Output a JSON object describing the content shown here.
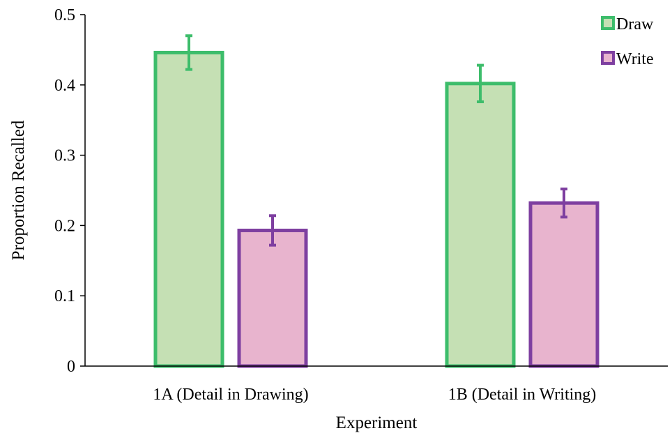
{
  "chart_data": {
    "type": "bar",
    "title": "",
    "xlabel": "Experiment",
    "ylabel": "Proportion Recalled",
    "categories": [
      "1A (Detail in Drawing)",
      "1B (Detail in Writing)"
    ],
    "ylim": [
      0,
      0.5
    ],
    "yticks": [
      0,
      0.1,
      0.2,
      0.3,
      0.4,
      0.5
    ],
    "ytick_labels": [
      "0",
      "0.1",
      "0.2",
      "0.3",
      "0.4",
      "0.5"
    ],
    "grid": false,
    "legend_position": "top-right",
    "series": [
      {
        "name": "Draw",
        "values": [
          0.446,
          0.402
        ],
        "error": [
          0.024,
          0.026
        ],
        "fill_color": "#c5e0b4",
        "edge_color": "#3dbd6b"
      },
      {
        "name": "Write",
        "values": [
          0.193,
          0.232
        ],
        "error": [
          0.021,
          0.02
        ],
        "fill_color": "#e8b4ce",
        "edge_color": "#7e3fa0"
      }
    ]
  }
}
